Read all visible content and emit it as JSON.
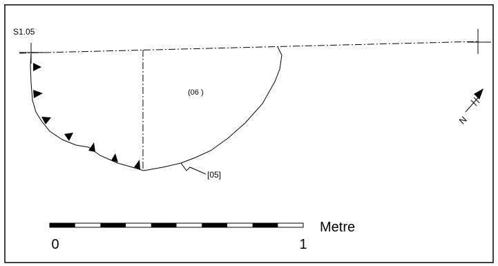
{
  "section_label": "S1.05",
  "fill_label": "(06 )",
  "cut_label": "[05]",
  "scale": {
    "unit_label": "Metre",
    "start_label": "0",
    "end_label": "1",
    "segments": 10
  },
  "north_label": "N",
  "colors": {
    "ink": "#000000",
    "paper": "#ffffff"
  }
}
